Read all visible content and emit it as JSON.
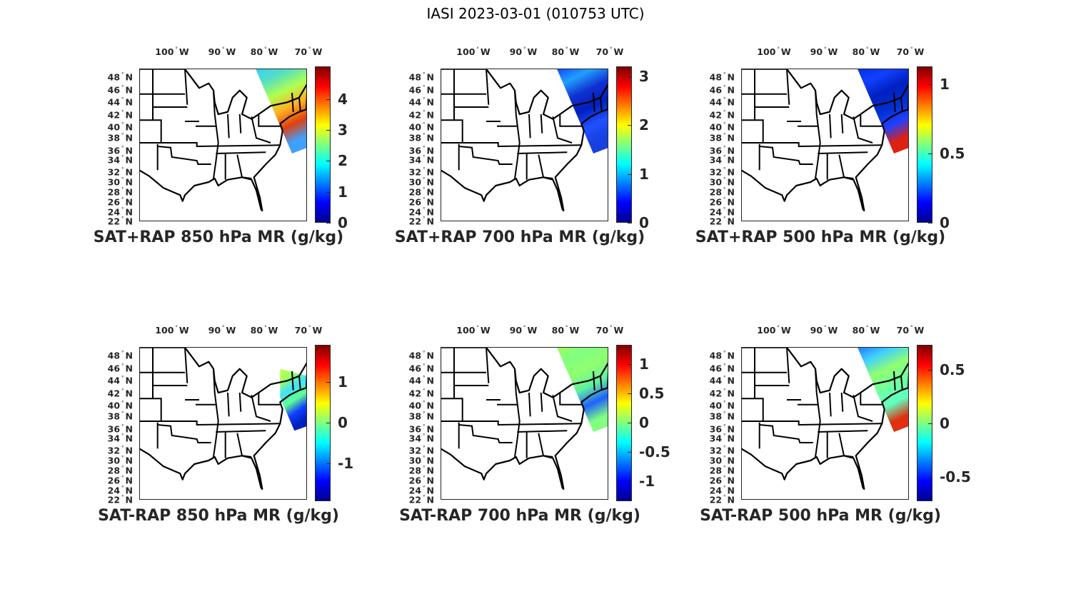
{
  "title": "IASI 2023-03-01 (010753 UTC)",
  "axes": {
    "lon_labels": [
      "100",
      "90",
      "80",
      "70"
    ],
    "lon_suffix": "W",
    "lat_labels": [
      "48",
      "46",
      "44",
      "42",
      "40",
      "38",
      "36",
      "34",
      "32",
      "30",
      "28",
      "26",
      "24",
      "22"
    ],
    "lat_suffix": "N",
    "degree": "°"
  },
  "colormap": [
    "#00008f",
    "#0000ff",
    "#00ffff",
    "#ffff00",
    "#ff0000",
    "#800000"
  ],
  "panels": [
    {
      "title": "SAT+RAP 850 hPa MR (g/kg)",
      "clim": [
        0,
        5.05
      ],
      "ticks": [
        "0",
        "1",
        "2",
        "3",
        "4"
      ],
      "tick_values": [
        0,
        1,
        2,
        3,
        4
      ],
      "swath": "full",
      "swath_colors": [
        "#33ccff",
        "#55e0c0",
        "#b0ff50",
        "#ffb020",
        "#e04010",
        "#40a0ff"
      ]
    },
    {
      "title": "SAT+RAP 700 hPa MR (g/kg)",
      "clim": [
        0,
        3.2
      ],
      "ticks": [
        "0",
        "1",
        "2",
        "3"
      ],
      "tick_values": [
        0,
        1,
        2,
        3
      ],
      "swath": "full",
      "swath_colors": [
        "#1040ff",
        "#20a0ff",
        "#1030d0",
        "#0020c0",
        "#2050ff",
        "#1840e0"
      ]
    },
    {
      "title": "SAT+RAP 500 hPa MR (g/kg)",
      "clim": [
        0,
        1.13
      ],
      "ticks": [
        "0",
        "0.5",
        "1"
      ],
      "tick_values": [
        0,
        0.5,
        1
      ],
      "swath": "full",
      "swath_colors": [
        "#0030e0",
        "#1040ff",
        "#0020c0",
        "#0030d0",
        "#2040ff",
        "#e02010"
      ]
    },
    {
      "title": "SAT-RAP 850 hPa MR (g/kg)",
      "clim": [
        -1.93,
        1.91
      ],
      "ticks": [
        "-1",
        "0",
        "1"
      ],
      "tick_values": [
        -1,
        0,
        1
      ],
      "swath": "partial",
      "swath_colors": [
        "#c0ff40",
        "#a0ff60",
        "#40e0ff",
        "#60ff90",
        "#1040ff",
        "#0020c0"
      ]
    },
    {
      "title": "SAT-RAP 700 hPa MR (g/kg)",
      "clim": [
        -1.34,
        1.33
      ],
      "ticks": [
        "-1",
        "-0.5",
        "0",
        "0.5",
        "1"
      ],
      "tick_values": [
        -1,
        -0.5,
        0,
        0.5,
        1
      ],
      "swath": "full",
      "swath_colors": [
        "#a0ff60",
        "#80ff80",
        "#90ff70",
        "#60f0a0",
        "#2060ff",
        "#80ff80"
      ]
    },
    {
      "title": "SAT-RAP 500 hPa MR (g/kg)",
      "clim": [
        -0.73,
        0.73
      ],
      "ticks": [
        "-0.5",
        "0",
        "0.5"
      ],
      "tick_values": [
        -0.5,
        0,
        0.5
      ],
      "swath": "full",
      "swath_colors": [
        "#2070ff",
        "#40d0ff",
        "#90ff70",
        "#70ffa0",
        "#60ffc0",
        "#e03010"
      ]
    }
  ]
}
